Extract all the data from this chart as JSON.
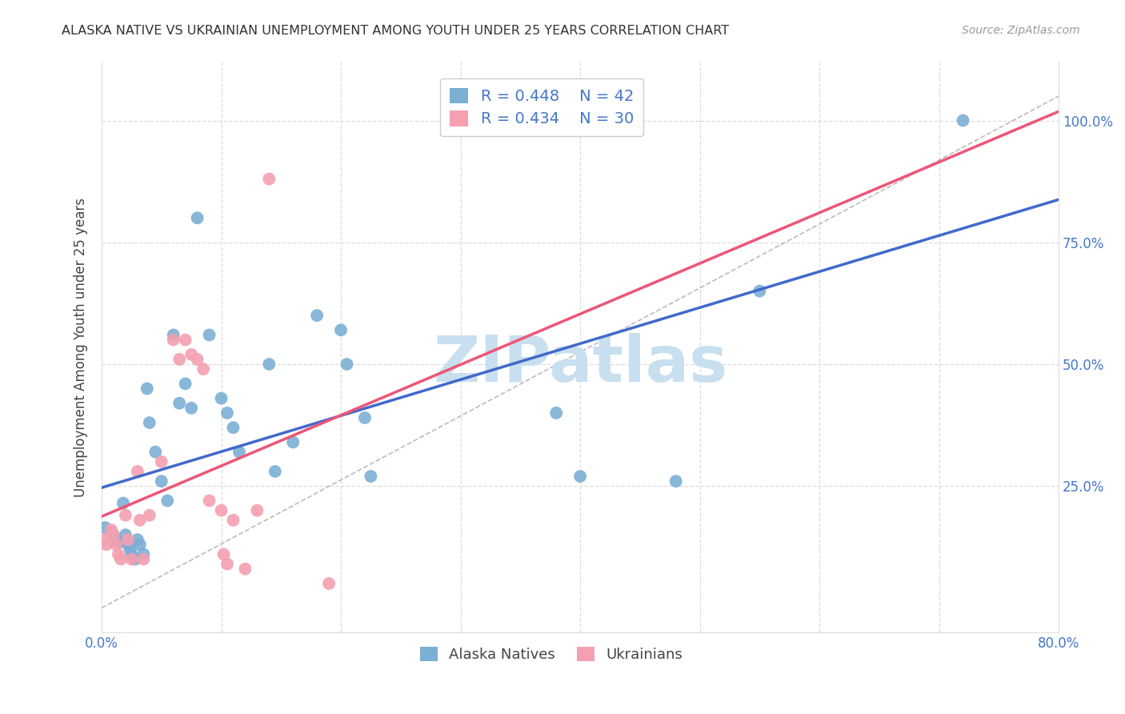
{
  "title": "ALASKA NATIVE VS UKRAINIAN UNEMPLOYMENT AMONG YOUTH UNDER 25 YEARS CORRELATION CHART",
  "source": "Source: ZipAtlas.com",
  "ylabel": "Unemployment Among Youth under 25 years",
  "xlim": [
    0.0,
    0.8
  ],
  "ylim": [
    -0.05,
    1.12
  ],
  "xtick_positions": [
    0.0,
    0.1,
    0.2,
    0.3,
    0.4,
    0.5,
    0.6,
    0.7,
    0.8
  ],
  "xticklabels": [
    "0.0%",
    "",
    "",
    "",
    "",
    "",
    "",
    "",
    "80.0%"
  ],
  "ytick_positions": [
    0.0,
    0.25,
    0.5,
    0.75,
    1.0
  ],
  "yticklabels": [
    "",
    "25.0%",
    "50.0%",
    "75.0%",
    "100.0%"
  ],
  "legend_r1": "R = 0.448",
  "legend_n1": "N = 42",
  "legend_r2": "R = 0.434",
  "legend_n2": "N = 30",
  "blue_scatter": "#7BAFD4",
  "pink_scatter": "#F4A0B0",
  "line_blue": "#4169CC",
  "line_pink": "#EE5577",
  "diag_color": "#BBBBBB",
  "grid_color": "#DDDDDD",
  "watermark": "ZIPatlas",
  "watermark_color": "#C8DFF0",
  "tick_color": "#4477CC",
  "title_color": "#333333",
  "alaska_x": [
    0.003,
    0.008,
    0.01,
    0.012,
    0.015,
    0.018,
    0.02,
    0.022,
    0.024,
    0.025,
    0.028,
    0.03,
    0.032,
    0.035,
    0.038,
    0.04,
    0.045,
    0.05,
    0.055,
    0.06,
    0.065,
    0.07,
    0.075,
    0.08,
    0.09,
    0.1,
    0.105,
    0.11,
    0.115,
    0.14,
    0.145,
    0.16,
    0.18,
    0.2,
    0.205,
    0.22,
    0.225,
    0.38,
    0.4,
    0.48,
    0.55,
    0.72
  ],
  "alaska_y": [
    0.165,
    0.155,
    0.15,
    0.14,
    0.135,
    0.215,
    0.15,
    0.13,
    0.12,
    0.11,
    0.1,
    0.14,
    0.13,
    0.11,
    0.45,
    0.38,
    0.32,
    0.26,
    0.22,
    0.56,
    0.42,
    0.46,
    0.41,
    0.8,
    0.56,
    0.43,
    0.4,
    0.37,
    0.32,
    0.5,
    0.28,
    0.34,
    0.6,
    0.57,
    0.5,
    0.39,
    0.27,
    0.4,
    0.27,
    0.26,
    0.65,
    1.0
  ],
  "ukraine_x": [
    0.002,
    0.004,
    0.008,
    0.01,
    0.012,
    0.014,
    0.016,
    0.02,
    0.022,
    0.025,
    0.03,
    0.032,
    0.035,
    0.04,
    0.05,
    0.06,
    0.065,
    0.07,
    0.075,
    0.08,
    0.085,
    0.09,
    0.1,
    0.102,
    0.105,
    0.11,
    0.12,
    0.13,
    0.14,
    0.19
  ],
  "ukraine_y": [
    0.14,
    0.13,
    0.16,
    0.15,
    0.13,
    0.11,
    0.1,
    0.19,
    0.14,
    0.1,
    0.28,
    0.18,
    0.1,
    0.19,
    0.3,
    0.55,
    0.51,
    0.55,
    0.52,
    0.51,
    0.49,
    0.22,
    0.2,
    0.11,
    0.09,
    0.18,
    0.08,
    0.2,
    0.88,
    0.05
  ]
}
